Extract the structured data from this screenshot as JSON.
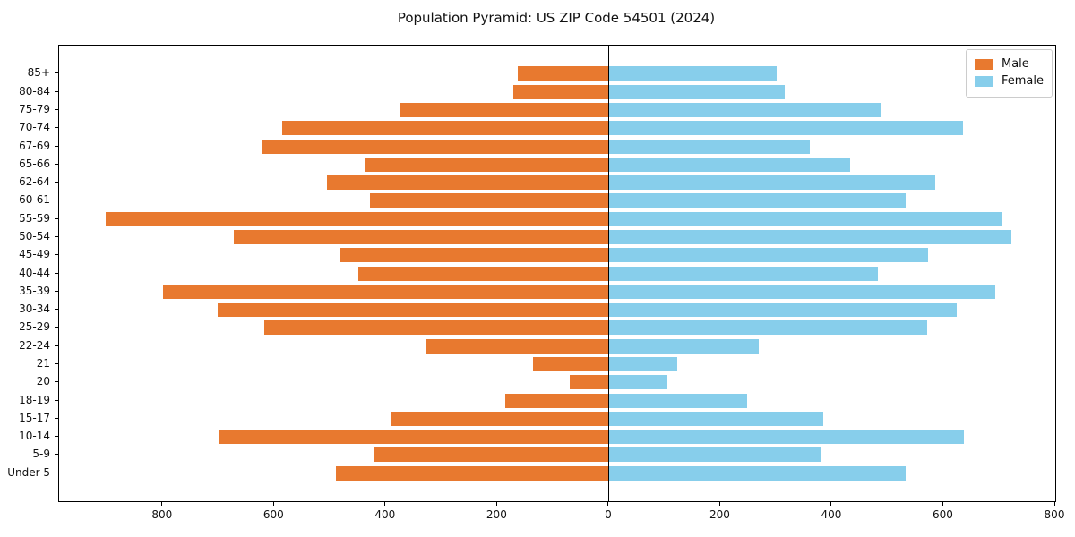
{
  "chart_data": {
    "type": "bar",
    "subtype": "population-pyramid",
    "orientation": "horizontal",
    "title": "Population Pyramid: US ZIP Code 54501 (2024)",
    "categories": [
      "85+",
      "80-84",
      "75-79",
      "70-74",
      "67-69",
      "65-66",
      "62-64",
      "60-61",
      "55-59",
      "50-54",
      "45-49",
      "40-44",
      "35-39",
      "30-34",
      "25-29",
      "22-24",
      "21",
      "20",
      "18-19",
      "15-17",
      "10-14",
      "5-9",
      "Under 5"
    ],
    "series": [
      {
        "name": "Male",
        "side": "left",
        "color": "#e8792f",
        "values": [
          164,
          171,
          376,
          586,
          622,
          436,
          505,
          429,
          903,
          673,
          484,
          449,
          800,
          702,
          619,
          327,
          136,
          71,
          186,
          392,
          700,
          422,
          489
        ]
      },
      {
        "name": "Female",
        "side": "right",
        "color": "#87ceeb",
        "values": [
          300,
          315,
          487,
          635,
          360,
          432,
          584,
          532,
          705,
          721,
          572,
          482,
          692,
          623,
          570,
          268,
          123,
          104,
          247,
          384,
          636,
          381,
          532
        ]
      }
    ],
    "xlim": [
      -986,
      800
    ],
    "x_tick_values": [
      -800,
      -600,
      -400,
      -200,
      0,
      200,
      400,
      600,
      800
    ],
    "x_tick_labels": [
      "800",
      "600",
      "400",
      "200",
      "0",
      "200",
      "400",
      "600",
      "800"
    ],
    "grid": false,
    "zero_line_color": "#000000",
    "axis_color": "#000000",
    "legend": {
      "position": "top-right",
      "items": [
        "Male",
        "Female"
      ]
    }
  }
}
